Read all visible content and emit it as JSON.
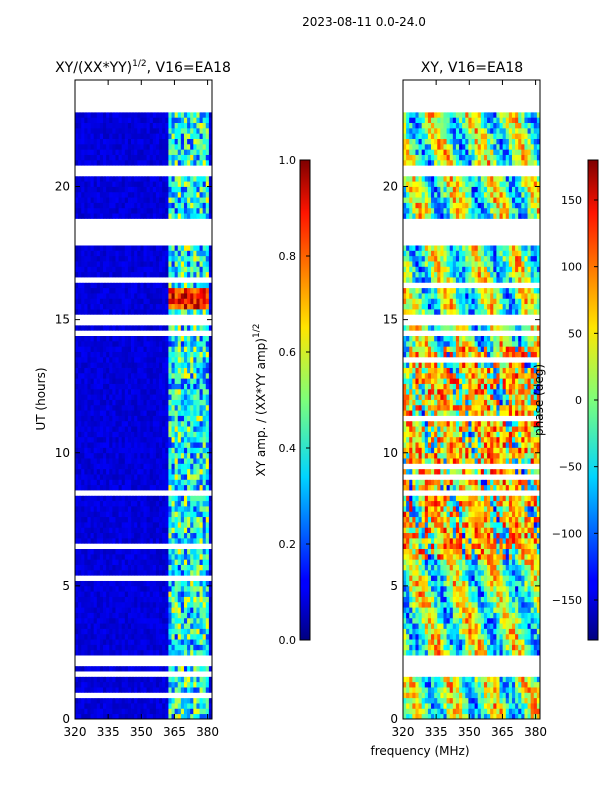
{
  "header": {
    "date_range": "2023-08-11 0.0-24.0"
  },
  "colors": {
    "gap": "#ffffff",
    "axis": "#000000"
  },
  "chart_data": [
    {
      "type": "heatmap",
      "title_main": "XY/(XX*YY)",
      "title_sup": "1/2",
      "title_rest": ", V16=EA18",
      "ylabel": "UT (hours)",
      "xlabel": "",
      "xlim": [
        320,
        382
      ],
      "ylim": [
        0,
        24
      ],
      "xticks": [
        320,
        335,
        350,
        365,
        380
      ],
      "yticks": [
        0,
        5,
        10,
        15,
        20
      ],
      "colorbar": {
        "label_main": "XY amp. / (XX*YY amp)",
        "label_sup": "1/2",
        "range": [
          0.0,
          1.0
        ],
        "ticks": [
          "0.0",
          "0.2",
          "0.4",
          "0.6",
          "0.8",
          "1.0"
        ],
        "tick_values": [
          0.0,
          0.2,
          0.4,
          0.6,
          0.8,
          1.0
        ]
      },
      "gaps_hours": [
        [
          22.8,
          24.0
        ],
        [
          20.4,
          20.8
        ],
        [
          17.8,
          18.8
        ],
        [
          14.9,
          15.2
        ],
        [
          14.4,
          14.7
        ],
        [
          2.0,
          2.4
        ],
        [
          1.7,
          1.8
        ],
        [
          1.1,
          1.2
        ]
      ],
      "bright_band_mhz": [
        362,
        381
      ],
      "bright_hours": [
        [
          15.3,
          16.2
        ]
      ]
    },
    {
      "type": "heatmap",
      "title": "XY, V16=EA18",
      "ylabel": "",
      "xlabel": "frequency (MHz)",
      "xlim": [
        320,
        382
      ],
      "ylim": [
        0,
        24
      ],
      "xticks": [
        320,
        335,
        350,
        365,
        380
      ],
      "yticks": [
        0,
        5,
        10,
        15,
        20
      ],
      "colorbar": {
        "label": "phase (deg)",
        "range": [
          -180,
          180
        ],
        "ticks": [
          "−150",
          "−100",
          "−50",
          "0",
          "50",
          "100",
          "150"
        ],
        "tick_values": [
          -150,
          -100,
          -50,
          0,
          50,
          100,
          150
        ]
      },
      "gaps_hours": [
        [
          22.8,
          24.0
        ],
        [
          20.4,
          20.8
        ],
        [
          17.8,
          18.8
        ],
        [
          14.9,
          15.2
        ],
        [
          14.4,
          14.7
        ],
        [
          2.0,
          2.4
        ],
        [
          1.7,
          1.8
        ],
        [
          1.1,
          1.2
        ]
      ]
    }
  ]
}
